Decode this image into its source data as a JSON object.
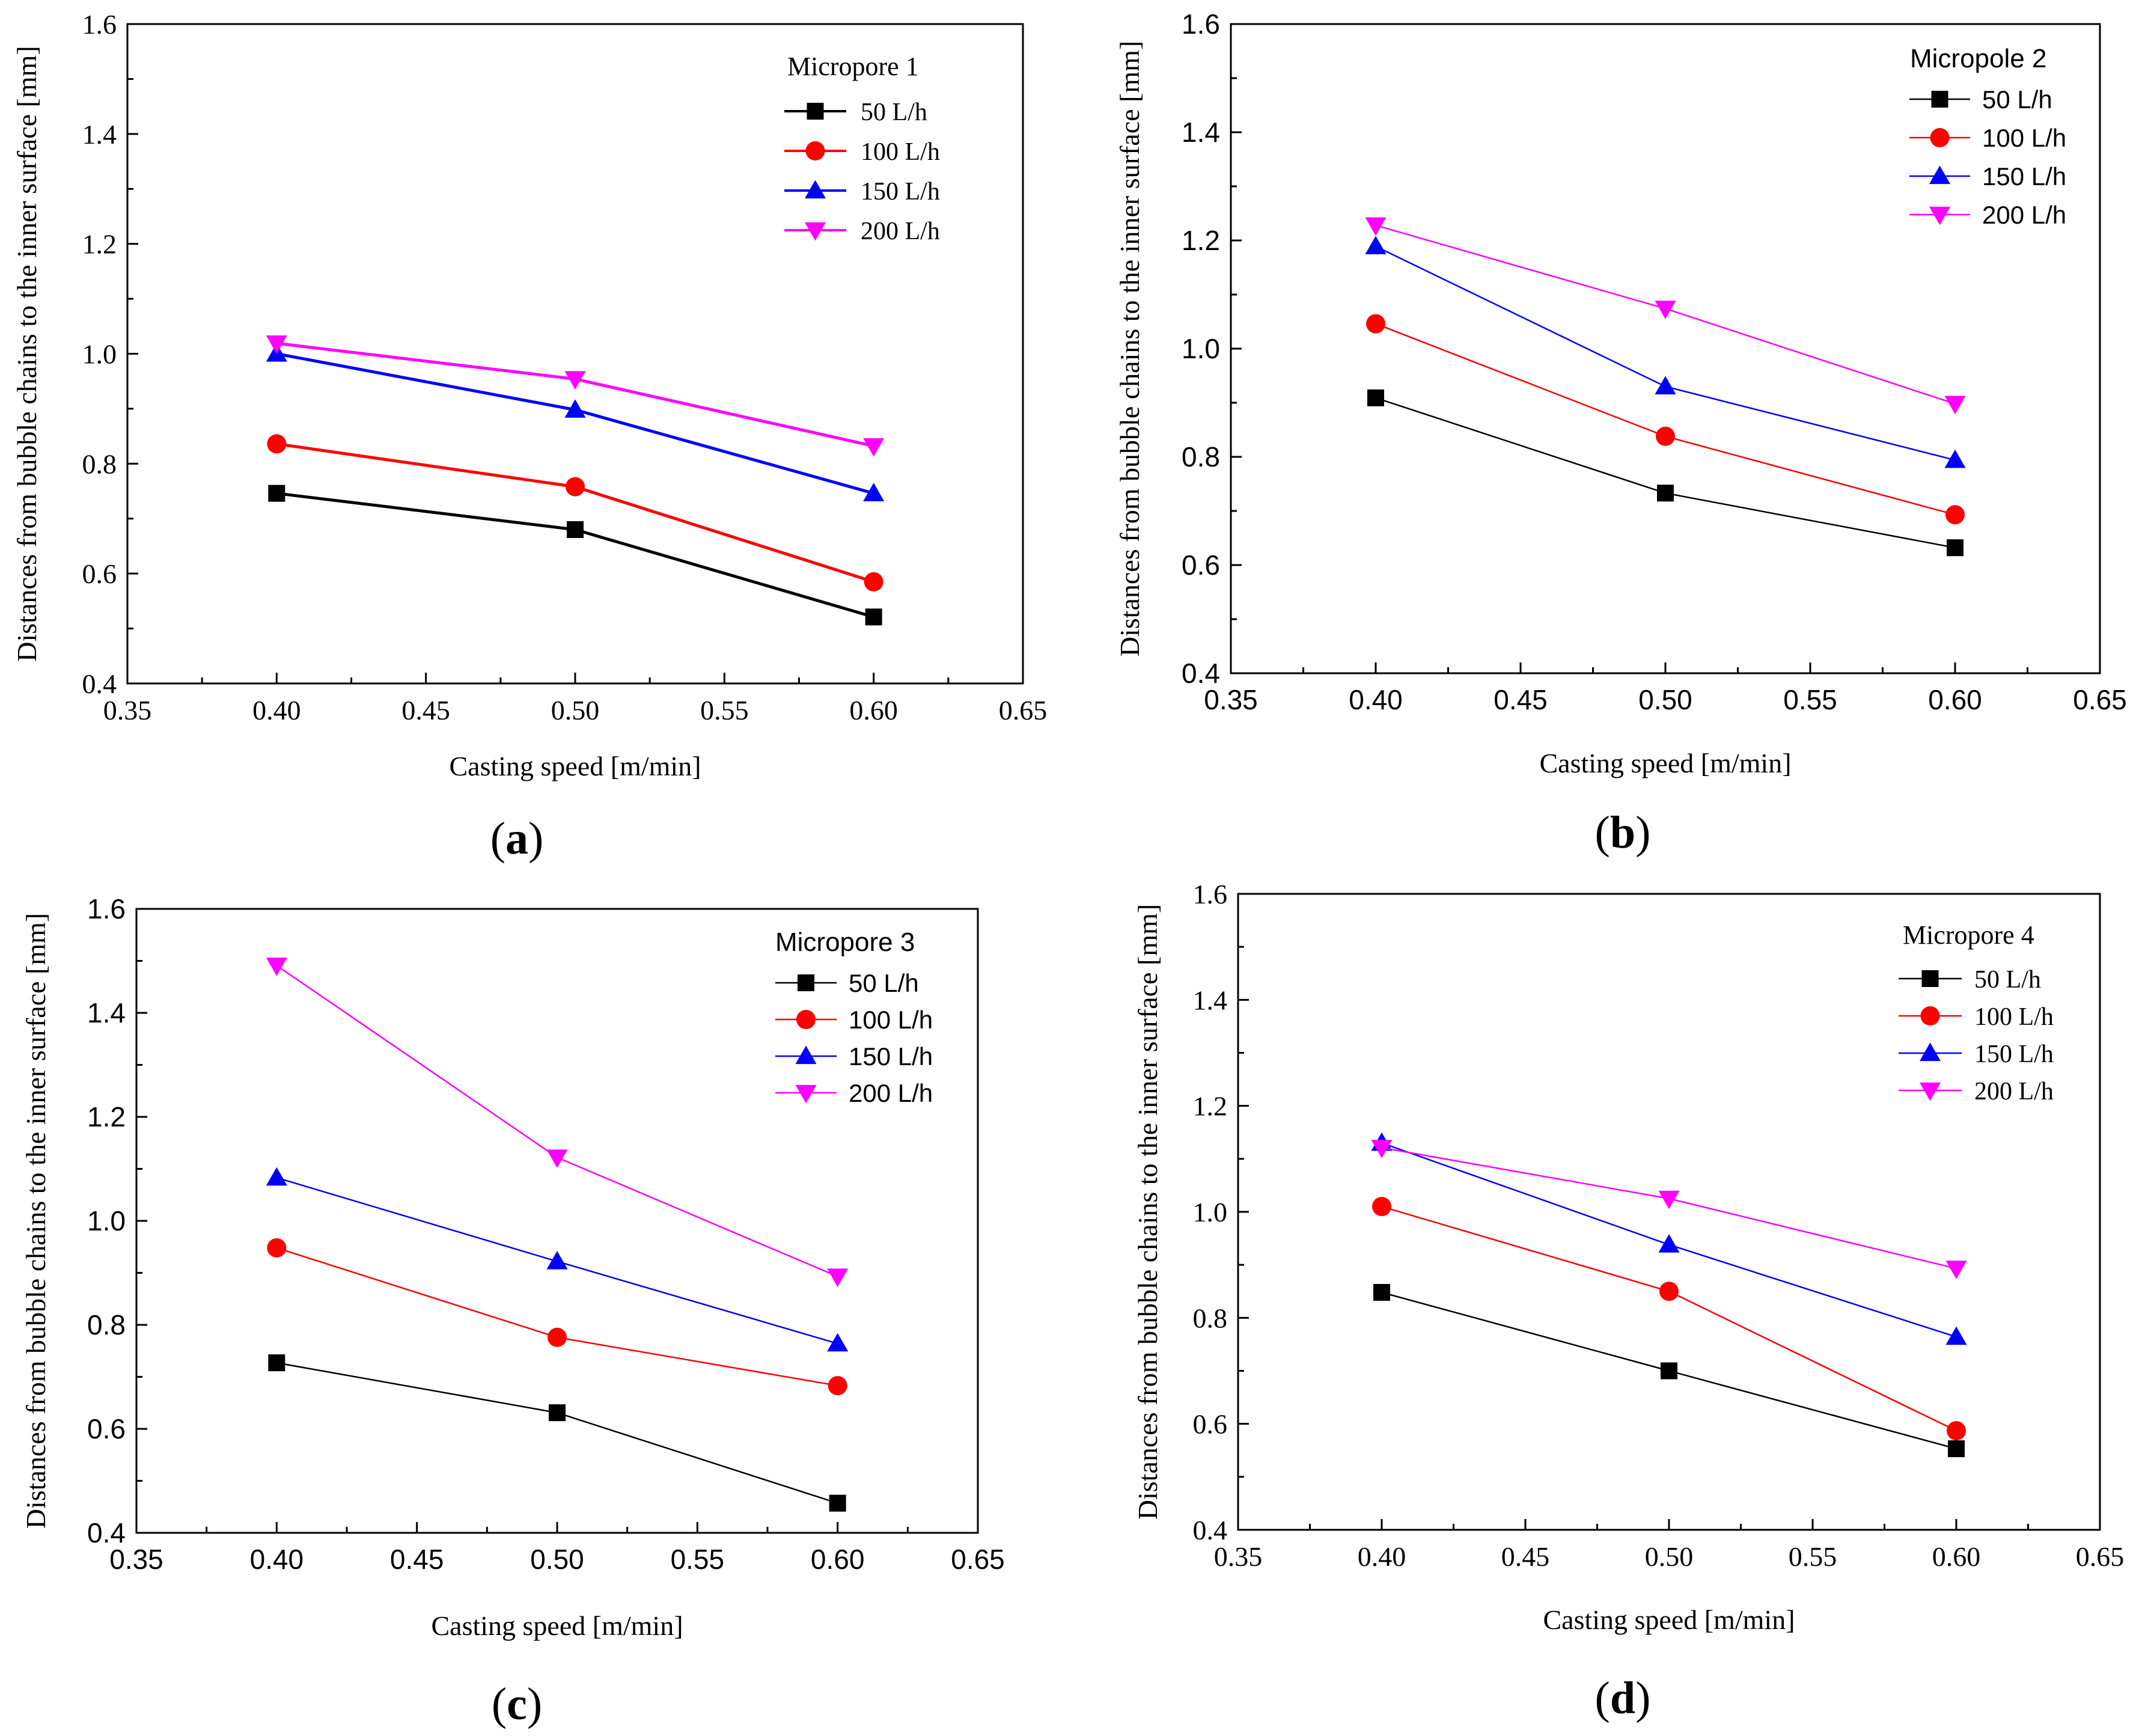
{
  "chart_data": [
    {
      "type": "line",
      "panel_label": "a",
      "legend_title": "Micropore 1",
      "xlabel": "Casting speed [m/min]",
      "ylabel": "Distances from bubble chains to the inner surface [mm]",
      "xlim": [
        0.35,
        0.65
      ],
      "ylim": [
        0.4,
        1.6
      ],
      "x_ticks": [
        "0.35",
        "0.40",
        "0.45",
        "0.50",
        "0.55",
        "0.60",
        "0.65"
      ],
      "y_ticks": [
        "0.4",
        "0.6",
        "0.8",
        "1.0",
        "1.2",
        "1.4",
        "1.6"
      ],
      "legend_position": "top-right",
      "x": [
        0.4,
        0.5,
        0.6
      ],
      "series": [
        {
          "name": "50 L/h",
          "values": [
            0.746,
            0.68,
            0.521
          ],
          "color": "#000000",
          "marker": "square"
        },
        {
          "name": "100 L/h",
          "values": [
            0.836,
            0.758,
            0.585
          ],
          "color": "#ff0000",
          "marker": "circle"
        },
        {
          "name": "150 L/h",
          "values": [
            1.0,
            0.898,
            0.746
          ],
          "color": "#0000ff",
          "marker": "triangle-up"
        },
        {
          "name": "200 L/h",
          "values": [
            1.019,
            0.954,
            0.832
          ],
          "color": "#ff00ff",
          "marker": "triangle-down"
        }
      ]
    },
    {
      "type": "line",
      "panel_label": "b",
      "legend_title": "Micropole 2",
      "xlabel": "Casting speed [m/min]",
      "ylabel": "Distances from bubble chains to the inner surface [mm]",
      "xlim": [
        0.35,
        0.65
      ],
      "ylim": [
        0.4,
        1.6
      ],
      "x_ticks": [
        "0.35",
        "0.40",
        "0.45",
        "0.50",
        "0.55",
        "0.60",
        "0.65"
      ],
      "y_ticks": [
        "0.4",
        "0.6",
        "0.8",
        "1.0",
        "1.2",
        "1.4",
        "1.6"
      ],
      "legend_position": "top-right",
      "x": [
        0.4,
        0.5,
        0.6
      ],
      "series": [
        {
          "name": "50 L/h",
          "values": [
            0.909,
            0.733,
            0.632
          ],
          "color": "#000000",
          "marker": "square"
        },
        {
          "name": "100 L/h",
          "values": [
            1.046,
            0.838,
            0.693
          ],
          "color": "#ff0000",
          "marker": "circle"
        },
        {
          "name": "150 L/h",
          "values": [
            1.189,
            0.93,
            0.794
          ],
          "color": "#0000ff",
          "marker": "triangle-up"
        },
        {
          "name": "200 L/h",
          "values": [
            1.228,
            1.074,
            0.898
          ],
          "color": "#ff00ff",
          "marker": "triangle-down"
        }
      ]
    },
    {
      "type": "line",
      "panel_label": "c",
      "legend_title": "Micropore 3",
      "xlabel": "Casting speed [m/min]",
      "ylabel": "Distances from bubble chains to the inner surface [mm]",
      "xlim": [
        0.35,
        0.65
      ],
      "ylim": [
        0.4,
        1.6
      ],
      "x_ticks": [
        "0.35",
        "0.40",
        "0.45",
        "0.50",
        "0.55",
        "0.60",
        "0.65"
      ],
      "y_ticks": [
        "0.4",
        "0.6",
        "0.8",
        "1.0",
        "1.2",
        "1.4",
        "1.6"
      ],
      "legend_position": "top-right",
      "x": [
        0.4,
        0.5,
        0.6
      ],
      "series": [
        {
          "name": "50 L/h",
          "values": [
            0.727,
            0.631,
            0.457
          ],
          "color": "#000000",
          "marker": "square"
        },
        {
          "name": "100 L/h",
          "values": [
            0.948,
            0.776,
            0.683
          ],
          "color": "#ff0000",
          "marker": "circle"
        },
        {
          "name": "150 L/h",
          "values": [
            1.083,
            0.922,
            0.764
          ],
          "color": "#0000ff",
          "marker": "triangle-up"
        },
        {
          "name": "200 L/h",
          "values": [
            1.491,
            1.122,
            0.893
          ],
          "color": "#ff00ff",
          "marker": "triangle-down"
        }
      ]
    },
    {
      "type": "line",
      "panel_label": "d",
      "legend_title": "Micropore 4",
      "xlabel": "Casting speed [m/min]",
      "ylabel": "Distances from bubble chains to the inner surface [mm]",
      "xlim": [
        0.35,
        0.65
      ],
      "ylim": [
        0.4,
        1.6
      ],
      "x_ticks": [
        "0.35",
        "0.40",
        "0.45",
        "0.50",
        "0.55",
        "0.60",
        "0.65"
      ],
      "y_ticks": [
        "0.4",
        "0.6",
        "0.8",
        "1.0",
        "1.2",
        "1.4",
        "1.6"
      ],
      "legend_position": "top-right",
      "x": [
        0.4,
        0.5,
        0.6
      ],
      "series": [
        {
          "name": "50 L/h",
          "values": [
            0.848,
            0.7,
            0.553
          ],
          "color": "#000000",
          "marker": "square"
        },
        {
          "name": "100 L/h",
          "values": [
            1.01,
            0.85,
            0.587
          ],
          "color": "#ff0000",
          "marker": "circle"
        },
        {
          "name": "150 L/h",
          "values": [
            1.13,
            0.938,
            0.764
          ],
          "color": "#0000ff",
          "marker": "triangle-up"
        },
        {
          "name": "200 L/h",
          "values": [
            1.121,
            1.025,
            0.893
          ],
          "color": "#ff00ff",
          "marker": "triangle-down"
        }
      ]
    }
  ]
}
